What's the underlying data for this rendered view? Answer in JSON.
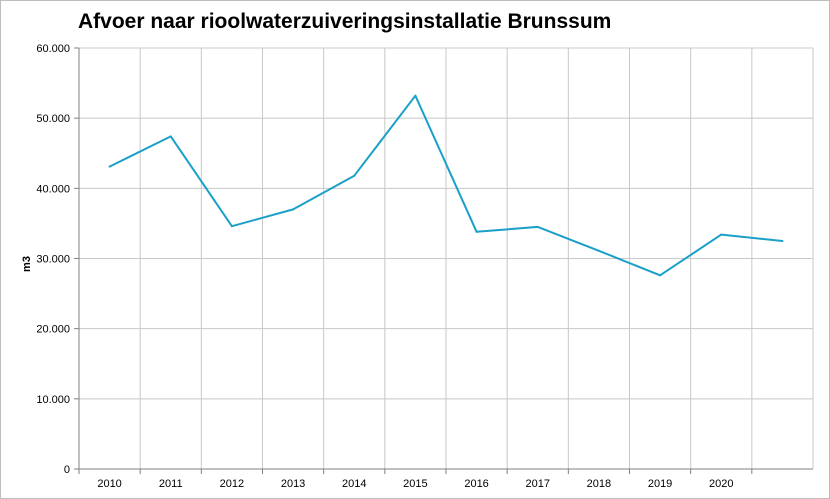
{
  "chart_data": {
    "type": "line",
    "title": "Afvoer naar rioolwaterzuiveringsinstallatie Brunssum",
    "xlabel": "",
    "ylabel": "m3",
    "categories": [
      "2010",
      "2011",
      "2012",
      "2013",
      "2014",
      "2015",
      "2016",
      "2017",
      "2018",
      "2019",
      "2020",
      ""
    ],
    "series": [
      {
        "values": [
          43100,
          47400,
          34600,
          37000,
          41800,
          53200,
          33800,
          34500,
          31100,
          27600,
          33400,
          32500
        ]
      }
    ],
    "ylim": [
      0,
      60000
    ],
    "yticks": [
      "0",
      "10.000",
      "20.000",
      "30.000",
      "40.000",
      "50.000",
      "60.000"
    ],
    "grid": true,
    "legend": "none",
    "line_color": "#1aa0c8",
    "grid_color": "#c8c8c8"
  }
}
